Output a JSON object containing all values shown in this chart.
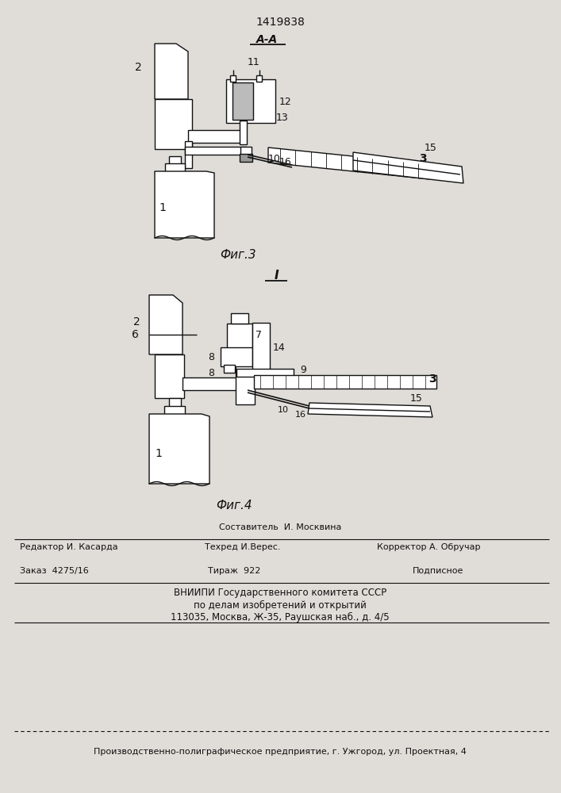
{
  "patent_number": "1419838",
  "fig3_label": "А-А",
  "fig3_caption": "Фиг.3",
  "fig4_label": "I",
  "fig4_caption": "Фиг.4",
  "bg_color": "#e0ddd8",
  "line_color": "#111111"
}
